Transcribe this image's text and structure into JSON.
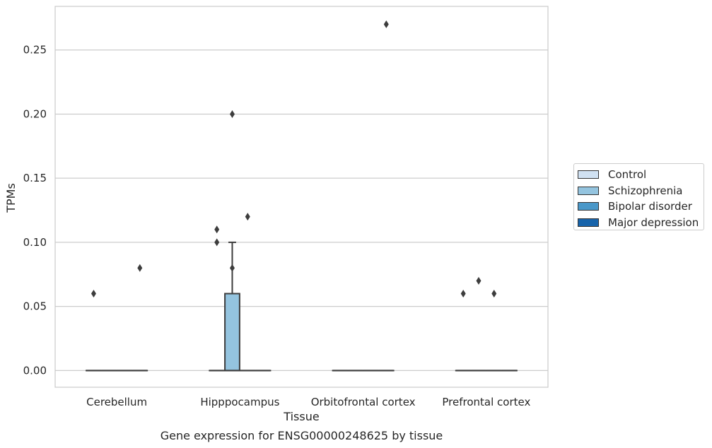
{
  "chart_data": {
    "type": "box",
    "title": "Gene expression for ENSG00000248625 by tissue",
    "xlabel": "Tissue",
    "ylabel": "TPMs",
    "ylim": [
      -0.013,
      0.284
    ],
    "yticks": [
      "0.00",
      "0.05",
      "0.10",
      "0.15",
      "0.20",
      "0.25"
    ],
    "categories": [
      "Cerebellum",
      "Hipppocampus",
      "Orbitofrontal cortex",
      "Prefrontal cortex"
    ],
    "grid": "horizontal",
    "legend_position": "right",
    "series": [
      {
        "name": "Control",
        "color": "#d0e1f2",
        "boxes": [
          {
            "q1": 0,
            "median": 0,
            "q3": 0,
            "whisker_low": 0,
            "whisker_high": 0,
            "outliers": [
              0.06
            ]
          },
          {
            "q1": 0,
            "median": 0,
            "q3": 0,
            "whisker_low": 0,
            "whisker_high": 0,
            "outliers": [
              0.1,
              0.11
            ]
          },
          {
            "q1": 0,
            "median": 0,
            "q3": 0,
            "whisker_low": 0,
            "whisker_high": 0,
            "outliers": []
          },
          {
            "q1": 0,
            "median": 0,
            "q3": 0,
            "whisker_low": 0,
            "whisker_high": 0,
            "outliers": [
              0.06
            ]
          }
        ]
      },
      {
        "name": "Schizophrenia",
        "color": "#94c4df",
        "boxes": [
          {
            "q1": 0,
            "median": 0,
            "q3": 0,
            "whisker_low": 0,
            "whisker_high": 0,
            "outliers": []
          },
          {
            "q1": 0,
            "median": 0,
            "q3": 0.06,
            "whisker_low": 0,
            "whisker_high": 0.1,
            "outliers": [
              0.08,
              0.2
            ]
          },
          {
            "q1": 0,
            "median": 0,
            "q3": 0,
            "whisker_low": 0,
            "whisker_high": 0,
            "outliers": []
          },
          {
            "q1": 0,
            "median": 0,
            "q3": 0,
            "whisker_low": 0,
            "whisker_high": 0,
            "outliers": [
              0.07
            ]
          }
        ]
      },
      {
        "name": "Bipolar disorder",
        "color": "#4a98c9",
        "boxes": [
          {
            "q1": 0,
            "median": 0,
            "q3": 0,
            "whisker_low": 0,
            "whisker_high": 0,
            "outliers": []
          },
          {
            "q1": 0,
            "median": 0,
            "q3": 0,
            "whisker_low": 0,
            "whisker_high": 0,
            "outliers": [
              0.12
            ]
          },
          {
            "q1": 0,
            "median": 0,
            "q3": 0,
            "whisker_low": 0,
            "whisker_high": 0,
            "outliers": []
          },
          {
            "q1": 0,
            "median": 0,
            "q3": 0,
            "whisker_low": 0,
            "whisker_high": 0,
            "outliers": [
              0.06
            ]
          }
        ]
      },
      {
        "name": "Major depression",
        "color": "#1764ab",
        "boxes": [
          {
            "q1": 0,
            "median": 0,
            "q3": 0,
            "whisker_low": 0,
            "whisker_high": 0,
            "outliers": [
              0.08
            ]
          },
          {
            "q1": 0,
            "median": 0,
            "q3": 0,
            "whisker_low": 0,
            "whisker_high": 0,
            "outliers": []
          },
          {
            "q1": 0,
            "median": 0,
            "q3": 0,
            "whisker_low": 0,
            "whisker_high": 0,
            "outliers": [
              0.27
            ]
          },
          {
            "q1": 0,
            "median": 0,
            "q3": 0,
            "whisker_low": 0,
            "whisker_high": 0,
            "outliers": []
          }
        ]
      }
    ]
  }
}
